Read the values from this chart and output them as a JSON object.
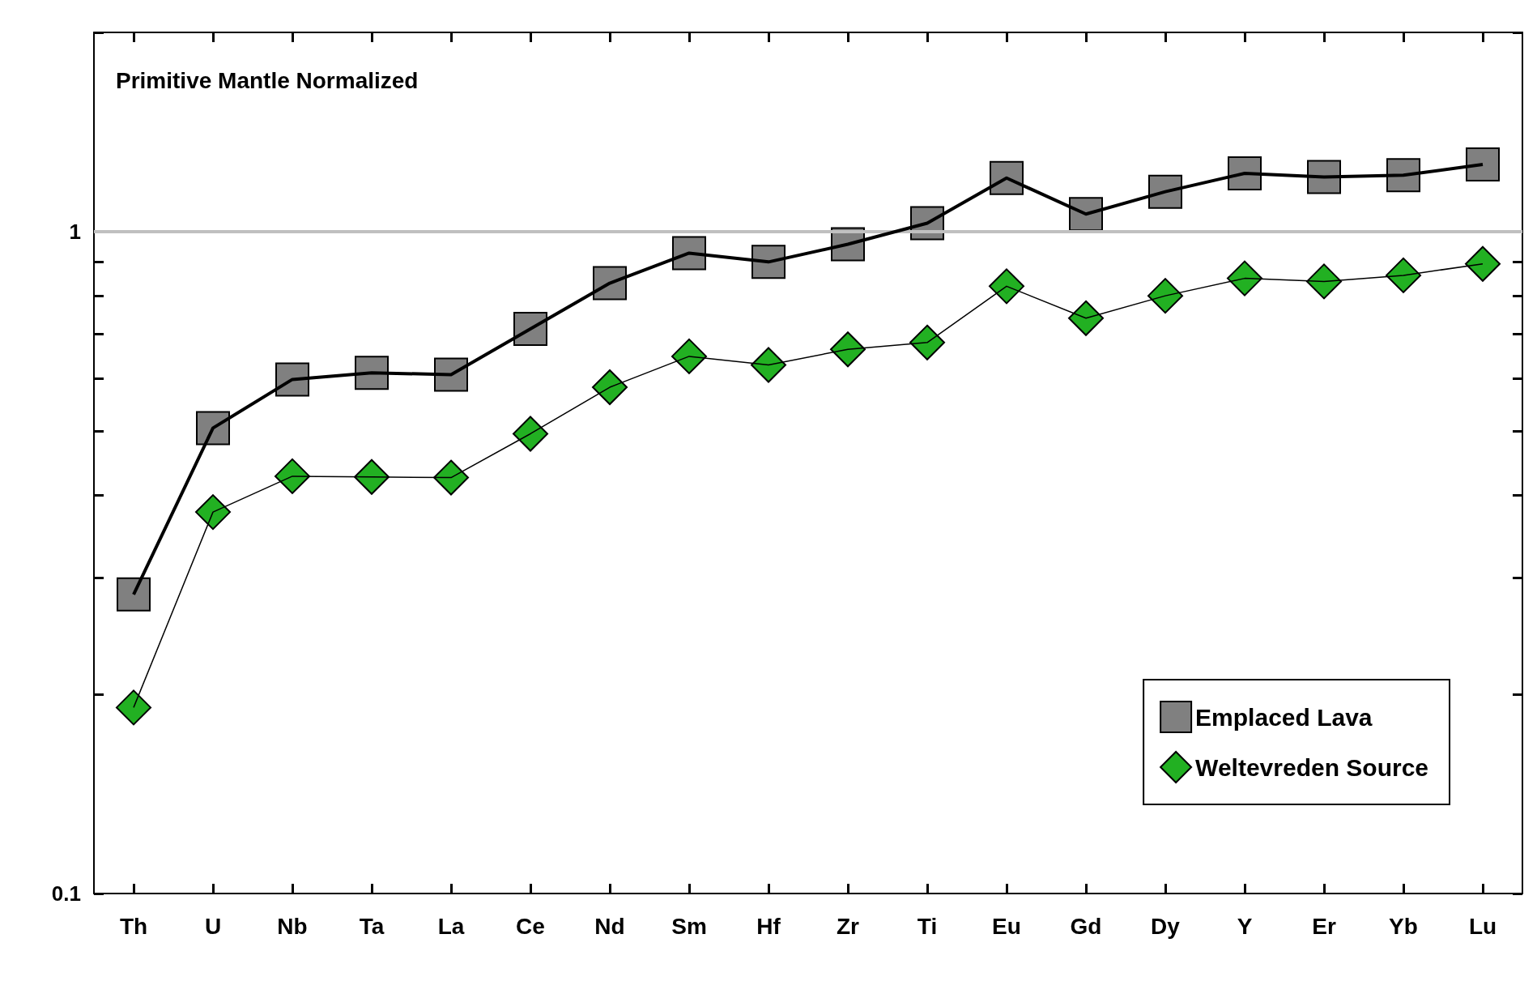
{
  "chart_data": {
    "type": "line",
    "title": "Primitive Mantle Normalized",
    "categories": [
      "Th",
      "U",
      "Nb",
      "Ta",
      "La",
      "Ce",
      "Nd",
      "Sm",
      "Hf",
      "Zr",
      "Ti",
      "Eu",
      "Gd",
      "Dy",
      "Y",
      "Er",
      "Yb",
      "Lu"
    ],
    "series": [
      {
        "name": "Emplaced Lava",
        "color": "#808080",
        "marker": "square",
        "values": [
          0.283,
          0.505,
          0.598,
          0.612,
          0.608,
          0.713,
          0.836,
          0.928,
          0.9,
          0.957,
          1.03,
          1.205,
          1.063,
          1.149,
          1.225,
          1.209,
          1.217,
          1.263
        ]
      },
      {
        "name": "Weltevreden Source",
        "color": "#22b022",
        "marker": "diamond",
        "values": [
          0.191,
          0.377,
          0.427,
          0.426,
          0.425,
          0.495,
          0.582,
          0.648,
          0.629,
          0.664,
          0.68,
          0.827,
          0.74,
          0.8,
          0.85,
          0.841,
          0.859,
          0.894
        ]
      }
    ],
    "log": "y",
    "ylim": [
      0.1,
      2
    ],
    "yticks": [
      0.1,
      {
        "value": 0.2,
        "label": null
      },
      {
        "value": 0.3,
        "label": null
      },
      {
        "value": 0.4,
        "label": null
      },
      {
        "value": 0.5,
        "label": null
      },
      {
        "value": 0.6,
        "label": null
      },
      {
        "value": 0.7,
        "label": null
      },
      {
        "value": 0.8,
        "label": null
      },
      {
        "value": 0.9,
        "label": null
      },
      1,
      {
        "value": 2,
        "label": null
      }
    ],
    "ref_lines": [
      {
        "axis": "y",
        "value": 1,
        "color": "#c0c0c0"
      }
    ],
    "grid": false,
    "legend": "bottom right"
  }
}
